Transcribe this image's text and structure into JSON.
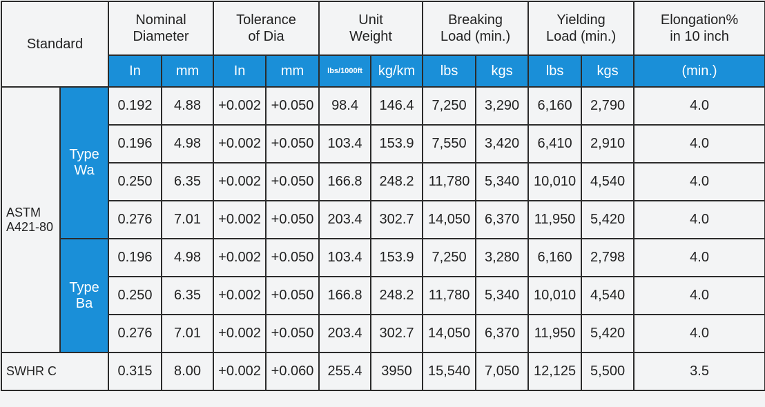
{
  "header": {
    "standard": "Standard",
    "groups": [
      [
        "Nominal",
        "Diameter"
      ],
      [
        "Tolerance",
        "of Dia"
      ],
      [
        "Unit",
        "Weight"
      ],
      [
        "Breaking",
        "Load (min.)"
      ],
      [
        "Yielding",
        "Load (min.)"
      ],
      [
        "Elongation%",
        "in 10 inch"
      ]
    ],
    "units": [
      "In",
      "mm",
      "In",
      "mm",
      "lbs/1000ft",
      "kg/km",
      "lbs",
      "kgs",
      "lbs",
      "kgs",
      "(min.)"
    ]
  },
  "sections": [
    {
      "standard": "ASTM A421-80",
      "groups": [
        {
          "type": "Type Wa",
          "rows": [
            [
              "0.192",
              "4.88",
              "+0.002",
              "+0.050",
              "98.4",
              "146.4",
              "7,250",
              "3,290",
              "6,160",
              "2,790",
              "4.0"
            ],
            [
              "0.196",
              "4.98",
              "+0.002",
              "+0.050",
              "103.4",
              "153.9",
              "7,550",
              "3,420",
              "6,410",
              "2,910",
              "4.0"
            ],
            [
              "0.250",
              "6.35",
              "+0.002",
              "+0.050",
              "166.8",
              "248.2",
              "11,780",
              "5,340",
              "10,010",
              "4,540",
              "4.0"
            ],
            [
              "0.276",
              "7.01",
              "+0.002",
              "+0.050",
              "203.4",
              "302.7",
              "14,050",
              "6,370",
              "11,950",
              "5,420",
              "4.0"
            ]
          ]
        },
        {
          "type": "Type Ba",
          "rows": [
            [
              "0.196",
              "4.98",
              "+0.002",
              "+0.050",
              "103.4",
              "153.9",
              "7,250",
              "3,280",
              "6,160",
              "2,798",
              "4.0"
            ],
            [
              "0.250",
              "6.35",
              "+0.002",
              "+0.050",
              "166.8",
              "248.2",
              "11,780",
              "5,340",
              "10,010",
              "4,540",
              "4.0"
            ],
            [
              "0.276",
              "7.01",
              "+0.002",
              "+0.050",
              "203.4",
              "302.7",
              "14,050",
              "6,370",
              "11,950",
              "5,420",
              "4.0"
            ]
          ]
        }
      ]
    },
    {
      "standard": "SWHR C",
      "rows": [
        [
          "0.315",
          "8.00",
          "+0.002",
          "+0.060",
          "255.4",
          "3950",
          "15,540",
          "7,050",
          "12,125",
          "5,500",
          "3.5"
        ]
      ]
    }
  ]
}
